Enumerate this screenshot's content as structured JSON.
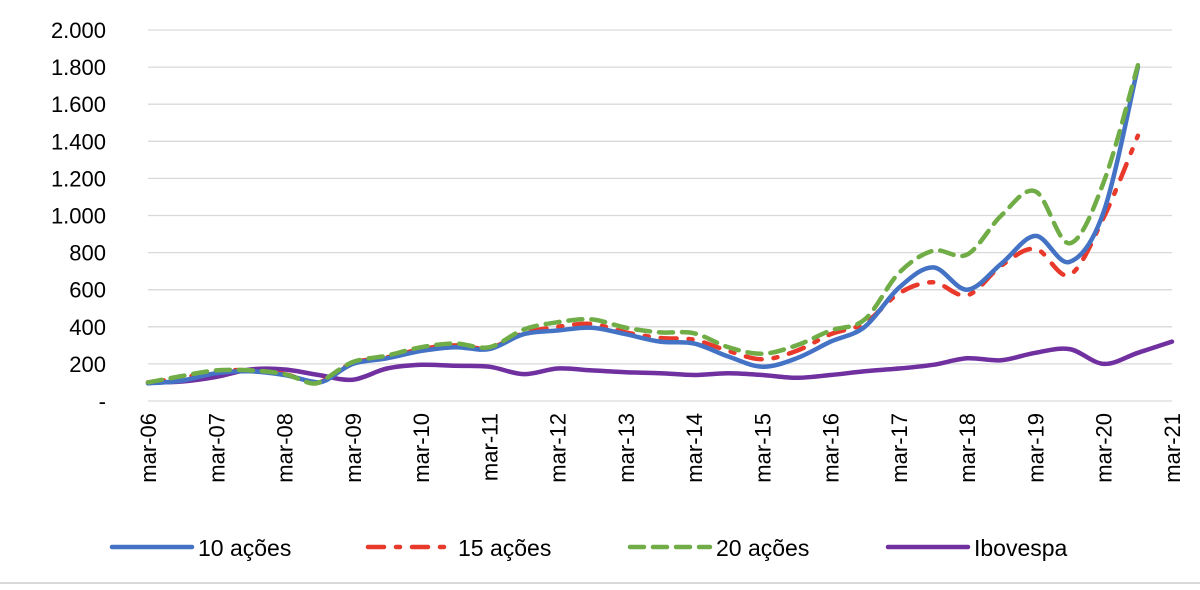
{
  "chart_data": {
    "type": "line",
    "title": "",
    "xlabel": "",
    "ylabel": "",
    "x_tick_labels": [
      "mar-06",
      "mar-07",
      "mar-08",
      "mar-09",
      "mar-10",
      "mar-11",
      "mar-12",
      "mar-13",
      "mar-14",
      "mar-15",
      "mar-16",
      "mar-17",
      "mar-18",
      "mar-19",
      "mar-20",
      "mar-21"
    ],
    "y_tick_labels": [
      "-",
      "200",
      "400",
      "600",
      "800",
      "1.000",
      "1.200",
      "1.400",
      "1.600",
      "1.800",
      "2.000"
    ],
    "y_tick_values": [
      0,
      200,
      400,
      600,
      800,
      1000,
      1200,
      1400,
      1600,
      1800,
      2000
    ],
    "ylim": [
      0,
      2000
    ],
    "xlim": [
      2006,
      2021
    ],
    "grid": "horizontal",
    "legend_position": "bottom",
    "series": [
      {
        "name": "10 ações",
        "color": "#4472C4",
        "style": "solid",
        "points": [
          [
            2006.0,
            95
          ],
          [
            2006.5,
            110
          ],
          [
            2007.0,
            150
          ],
          [
            2007.5,
            160
          ],
          [
            2008.0,
            140
          ],
          [
            2008.4,
            105
          ],
          [
            2008.6,
            110
          ],
          [
            2009.0,
            200
          ],
          [
            2009.5,
            230
          ],
          [
            2010.0,
            270
          ],
          [
            2010.5,
            290
          ],
          [
            2011.0,
            280
          ],
          [
            2011.5,
            360
          ],
          [
            2012.0,
            380
          ],
          [
            2012.5,
            395
          ],
          [
            2013.0,
            360
          ],
          [
            2013.5,
            320
          ],
          [
            2014.0,
            310
          ],
          [
            2014.5,
            240
          ],
          [
            2015.0,
            185
          ],
          [
            2015.5,
            230
          ],
          [
            2016.0,
            320
          ],
          [
            2016.5,
            400
          ],
          [
            2017.0,
            610
          ],
          [
            2017.5,
            720
          ],
          [
            2018.0,
            600
          ],
          [
            2018.5,
            740
          ],
          [
            2019.0,
            890
          ],
          [
            2019.5,
            750
          ],
          [
            2020.0,
            1020
          ],
          [
            2020.5,
            1800
          ]
        ]
      },
      {
        "name": "15 ações",
        "color": "#E8392B",
        "style": "dash-dot",
        "points": [
          [
            2006.0,
            100
          ],
          [
            2006.5,
            125
          ],
          [
            2007.0,
            160
          ],
          [
            2007.5,
            165
          ],
          [
            2008.0,
            145
          ],
          [
            2008.4,
            100
          ],
          [
            2008.6,
            115
          ],
          [
            2009.0,
            205
          ],
          [
            2009.5,
            235
          ],
          [
            2010.0,
            280
          ],
          [
            2010.5,
            300
          ],
          [
            2011.0,
            285
          ],
          [
            2011.5,
            365
          ],
          [
            2012.0,
            400
          ],
          [
            2012.5,
            415
          ],
          [
            2013.0,
            370
          ],
          [
            2013.5,
            340
          ],
          [
            2014.0,
            330
          ],
          [
            2014.5,
            270
          ],
          [
            2015.0,
            225
          ],
          [
            2015.5,
            270
          ],
          [
            2016.0,
            360
          ],
          [
            2016.5,
            420
          ],
          [
            2017.0,
            580
          ],
          [
            2017.5,
            640
          ],
          [
            2018.0,
            570
          ],
          [
            2018.5,
            730
          ],
          [
            2019.0,
            820
          ],
          [
            2019.5,
            680
          ],
          [
            2020.0,
            990
          ],
          [
            2020.5,
            1430
          ]
        ]
      },
      {
        "name": "20 ações",
        "color": "#70AD47",
        "style": "dashed",
        "points": [
          [
            2006.0,
            100
          ],
          [
            2006.5,
            135
          ],
          [
            2007.0,
            165
          ],
          [
            2007.5,
            165
          ],
          [
            2008.0,
            145
          ],
          [
            2008.4,
            95
          ],
          [
            2008.6,
            120
          ],
          [
            2009.0,
            210
          ],
          [
            2009.5,
            245
          ],
          [
            2010.0,
            290
          ],
          [
            2010.5,
            310
          ],
          [
            2011.0,
            290
          ],
          [
            2011.5,
            385
          ],
          [
            2012.0,
            425
          ],
          [
            2012.5,
            440
          ],
          [
            2013.0,
            395
          ],
          [
            2013.5,
            370
          ],
          [
            2014.0,
            365
          ],
          [
            2014.5,
            290
          ],
          [
            2015.0,
            255
          ],
          [
            2015.5,
            300
          ],
          [
            2016.0,
            380
          ],
          [
            2016.5,
            440
          ],
          [
            2017.0,
            690
          ],
          [
            2017.5,
            810
          ],
          [
            2018.0,
            790
          ],
          [
            2018.5,
            1000
          ],
          [
            2019.0,
            1130
          ],
          [
            2019.5,
            850
          ],
          [
            2020.0,
            1180
          ],
          [
            2020.5,
            1810
          ]
        ]
      },
      {
        "name": "Ibovespa",
        "color": "#7030A0",
        "style": "solid",
        "points": [
          [
            2006.0,
            100
          ],
          [
            2006.5,
            105
          ],
          [
            2007.0,
            130
          ],
          [
            2007.5,
            170
          ],
          [
            2008.0,
            170
          ],
          [
            2008.5,
            140
          ],
          [
            2009.0,
            115
          ],
          [
            2009.5,
            175
          ],
          [
            2010.0,
            195
          ],
          [
            2010.5,
            190
          ],
          [
            2011.0,
            185
          ],
          [
            2011.5,
            145
          ],
          [
            2012.0,
            175
          ],
          [
            2012.5,
            165
          ],
          [
            2013.0,
            155
          ],
          [
            2013.5,
            150
          ],
          [
            2014.0,
            140
          ],
          [
            2014.5,
            150
          ],
          [
            2015.0,
            140
          ],
          [
            2015.5,
            125
          ],
          [
            2016.0,
            140
          ],
          [
            2016.5,
            160
          ],
          [
            2017.0,
            175
          ],
          [
            2017.5,
            195
          ],
          [
            2018.0,
            230
          ],
          [
            2018.5,
            220
          ],
          [
            2019.0,
            260
          ],
          [
            2019.5,
            280
          ],
          [
            2020.0,
            200
          ],
          [
            2020.5,
            260
          ],
          [
            2021.0,
            320
          ]
        ]
      }
    ]
  }
}
